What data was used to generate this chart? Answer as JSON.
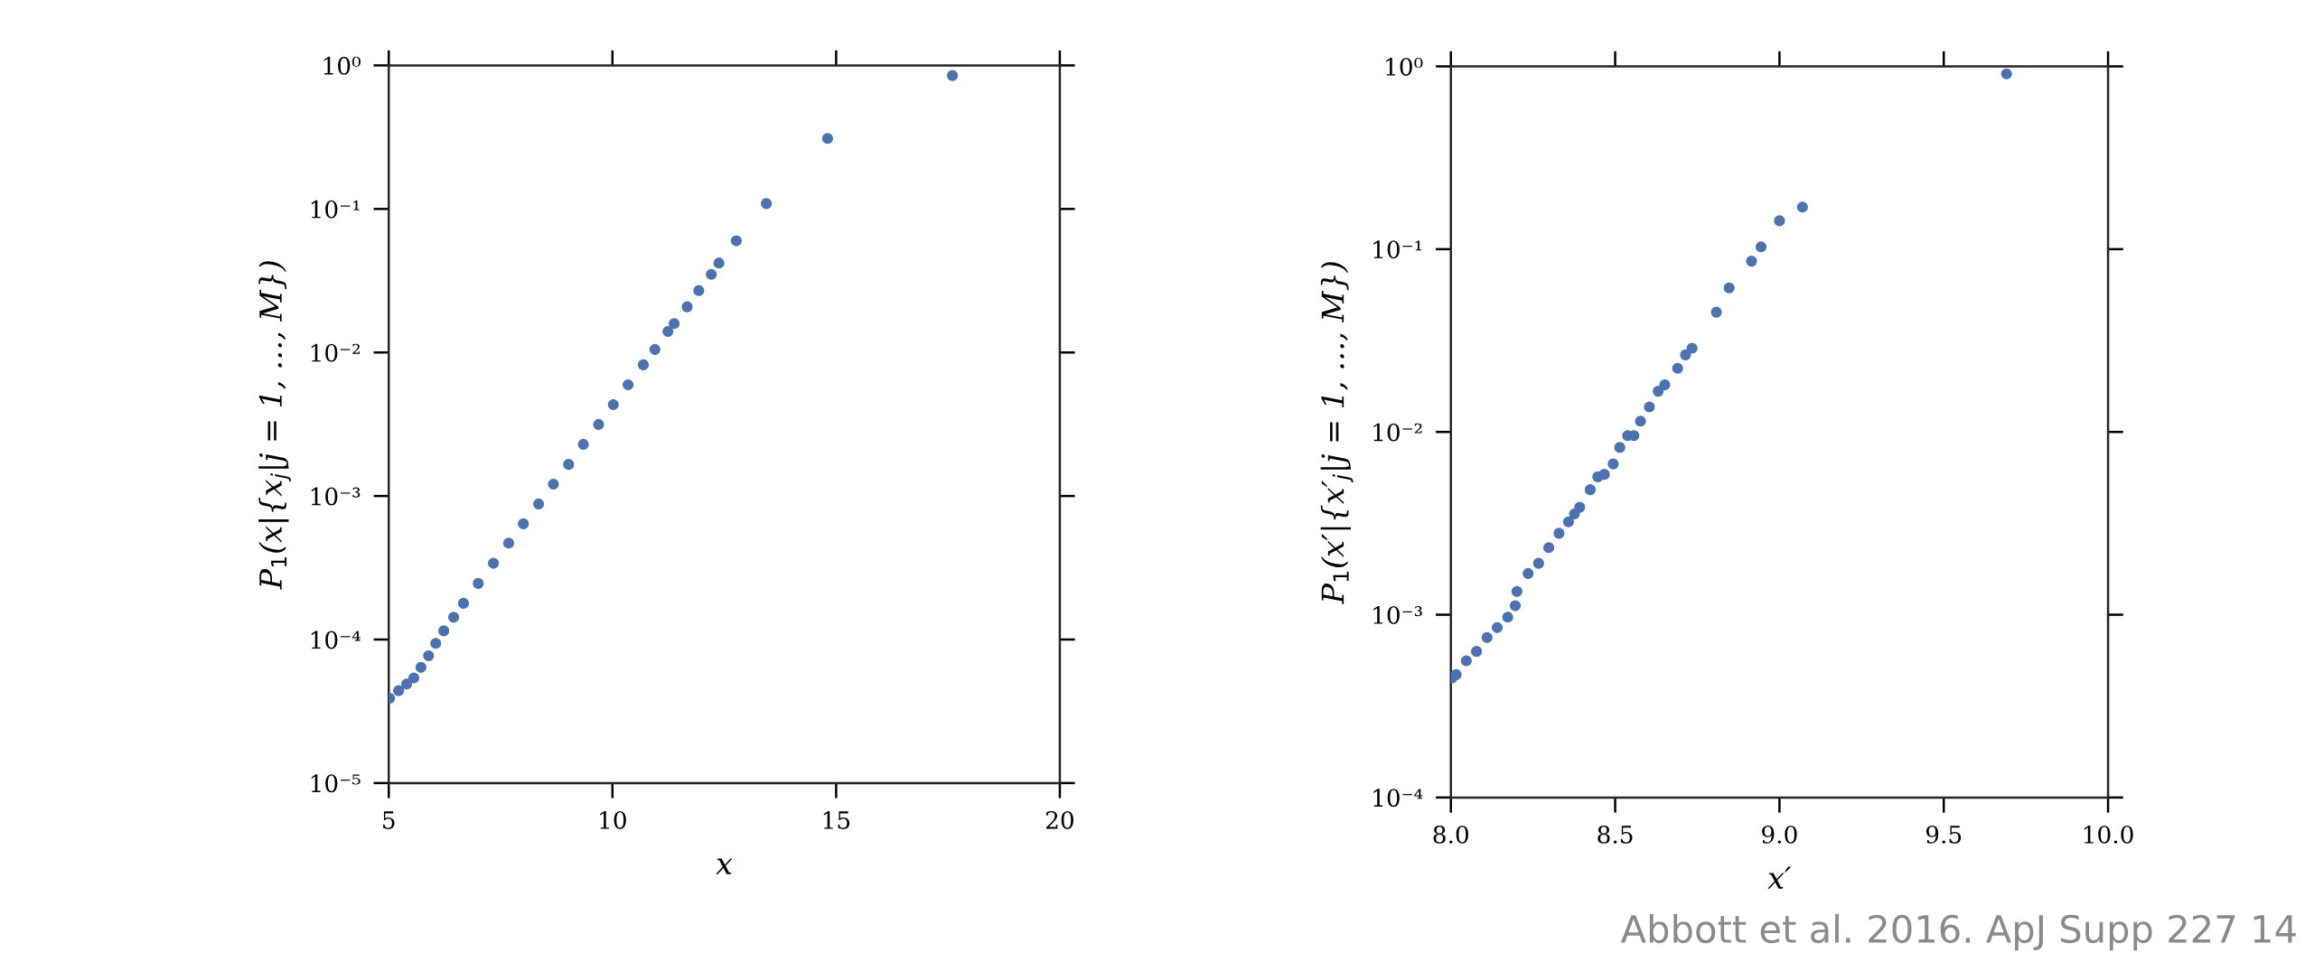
{
  "chart_data": [
    {
      "type": "scatter",
      "xlabel": "x",
      "ylabel": "P$_{1}$(x|{x$_{j}$|j = 1, …, M})",
      "log": "y",
      "marker": "circle",
      "grid": false,
      "xlim": [
        5,
        20
      ],
      "xticks": [
        5,
        10,
        15,
        20
      ],
      "ylim": [
        1e-05,
        1
      ],
      "yticks": [
        {
          "value": 1e-05,
          "label": "10⁻⁵"
        },
        {
          "value": 0.0001,
          "label": "10⁻⁴"
        },
        {
          "value": 0.001,
          "label": "10⁻³"
        },
        {
          "value": 0.01,
          "label": "10⁻²"
        },
        {
          "value": 0.1,
          "label": "10⁻¹"
        },
        {
          "value": 1,
          "label": "10⁰"
        }
      ],
      "series": [
        {
          "color": "#4c72b0",
          "x": [
            5.02,
            5.22,
            5.4,
            5.56,
            5.72,
            5.89,
            6.05,
            6.23,
            6.45,
            6.67,
            7.0,
            7.34,
            7.68,
            8.01,
            8.35,
            8.68,
            9.02,
            9.35,
            9.69,
            10.02,
            10.35,
            10.69,
            10.95,
            11.24,
            11.38,
            11.67,
            11.93,
            12.21,
            12.38,
            12.77,
            13.44,
            14.81,
            17.6
          ],
          "values": [
            3.9e-05,
            4.4e-05,
            4.9e-05,
            5.4e-05,
            6.4e-05,
            7.7e-05,
            9.4e-05,
            0.000115,
            0.000143,
            0.000179,
            0.000246,
            0.00034,
            0.00047,
            0.00064,
            0.00088,
            0.00121,
            0.00166,
            0.00229,
            0.00315,
            0.00433,
            0.00595,
            0.0082,
            0.0105,
            0.014,
            0.0159,
            0.0208,
            0.027,
            0.035,
            0.042,
            0.06,
            0.109,
            0.31,
            0.85
          ]
        }
      ]
    },
    {
      "type": "scatter",
      "xlabel": "x′",
      "ylabel": "P$_{1}$(x′|{x′$_{j}$|j = 1, …, M})",
      "log": "y",
      "marker": "circle",
      "grid": false,
      "xlim": [
        8.0,
        10.0
      ],
      "xticks": [
        {
          "value": 8.0,
          "label": "8.0"
        },
        {
          "value": 8.5,
          "label": "8.5"
        },
        {
          "value": 9.0,
          "label": "9.0"
        },
        {
          "value": 9.5,
          "label": "9.5"
        },
        {
          "value": 10.0,
          "label": "10.0"
        }
      ],
      "ylim": [
        0.0001,
        1
      ],
      "yticks": [
        {
          "value": 0.0001,
          "label": "10⁻⁴"
        },
        {
          "value": 0.001,
          "label": "10⁻³"
        },
        {
          "value": 0.01,
          "label": "10⁻²"
        },
        {
          "value": 0.1,
          "label": "10⁻¹"
        },
        {
          "value": 1,
          "label": "10⁰"
        }
      ],
      "annotations": [
        "Abbott et al. 2016. ApJ Supp 227 14"
      ],
      "series": [
        {
          "color": "#4c72b0",
          "x": [
            8.003,
            8.016,
            8.047,
            8.078,
            8.11,
            8.141,
            8.173,
            8.196,
            8.201,
            8.235,
            8.267,
            8.298,
            8.329,
            8.358,
            8.376,
            8.392,
            8.424,
            8.447,
            8.467,
            8.494,
            8.514,
            8.538,
            8.557,
            8.577,
            8.604,
            8.631,
            8.651,
            8.69,
            8.714,
            8.734,
            8.808,
            8.847,
            8.915,
            8.944,
            9.0,
            9.07,
            9.691
          ],
          "values": [
            0.00045,
            0.00047,
            0.00056,
            0.00063,
            0.00075,
            0.00085,
            0.00097,
            0.00112,
            0.00134,
            0.00168,
            0.00191,
            0.00233,
            0.00279,
            0.00322,
            0.00356,
            0.00387,
            0.00483,
            0.00568,
            0.00586,
            0.00668,
            0.00822,
            0.00955,
            0.00955,
            0.01146,
            0.0137,
            0.0167,
            0.0181,
            0.0223,
            0.0264,
            0.0287,
            0.0452,
            0.0614,
            0.086,
            0.103,
            0.143,
            0.17,
            0.91
          ]
        }
      ]
    }
  ]
}
